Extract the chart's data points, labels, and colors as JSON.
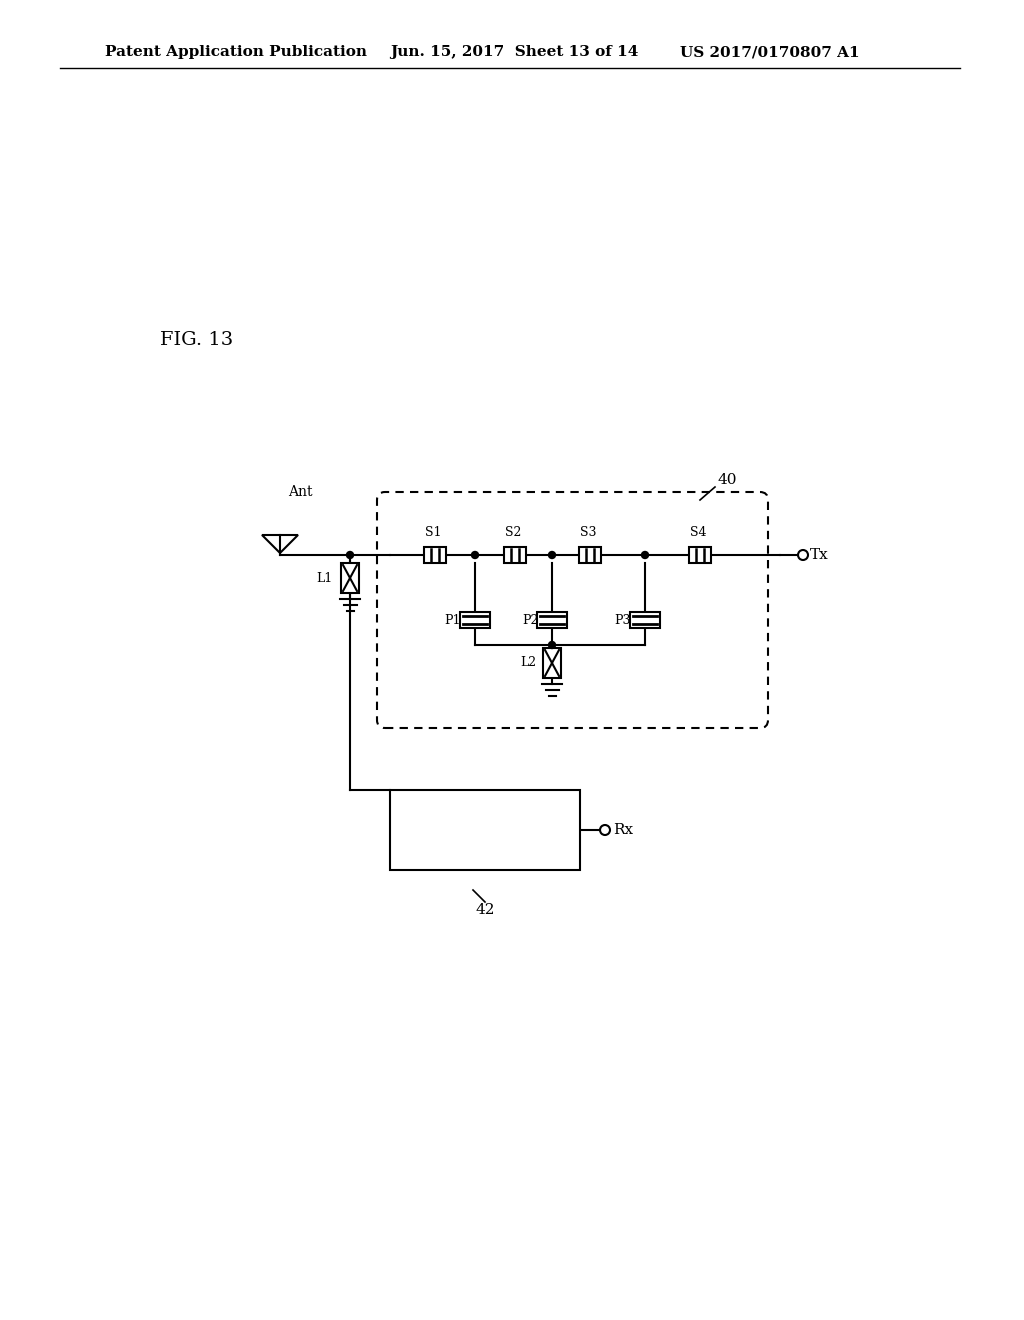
{
  "background_color": "#ffffff",
  "header_text": "Patent Application Publication",
  "header_date": "Jun. 15, 2017  Sheet 13 of 14",
  "header_patent": "US 2017/0170807 A1",
  "fig_label": "FIG. 13",
  "title_fontsize": 11,
  "fig_label_fontsize": 14
}
